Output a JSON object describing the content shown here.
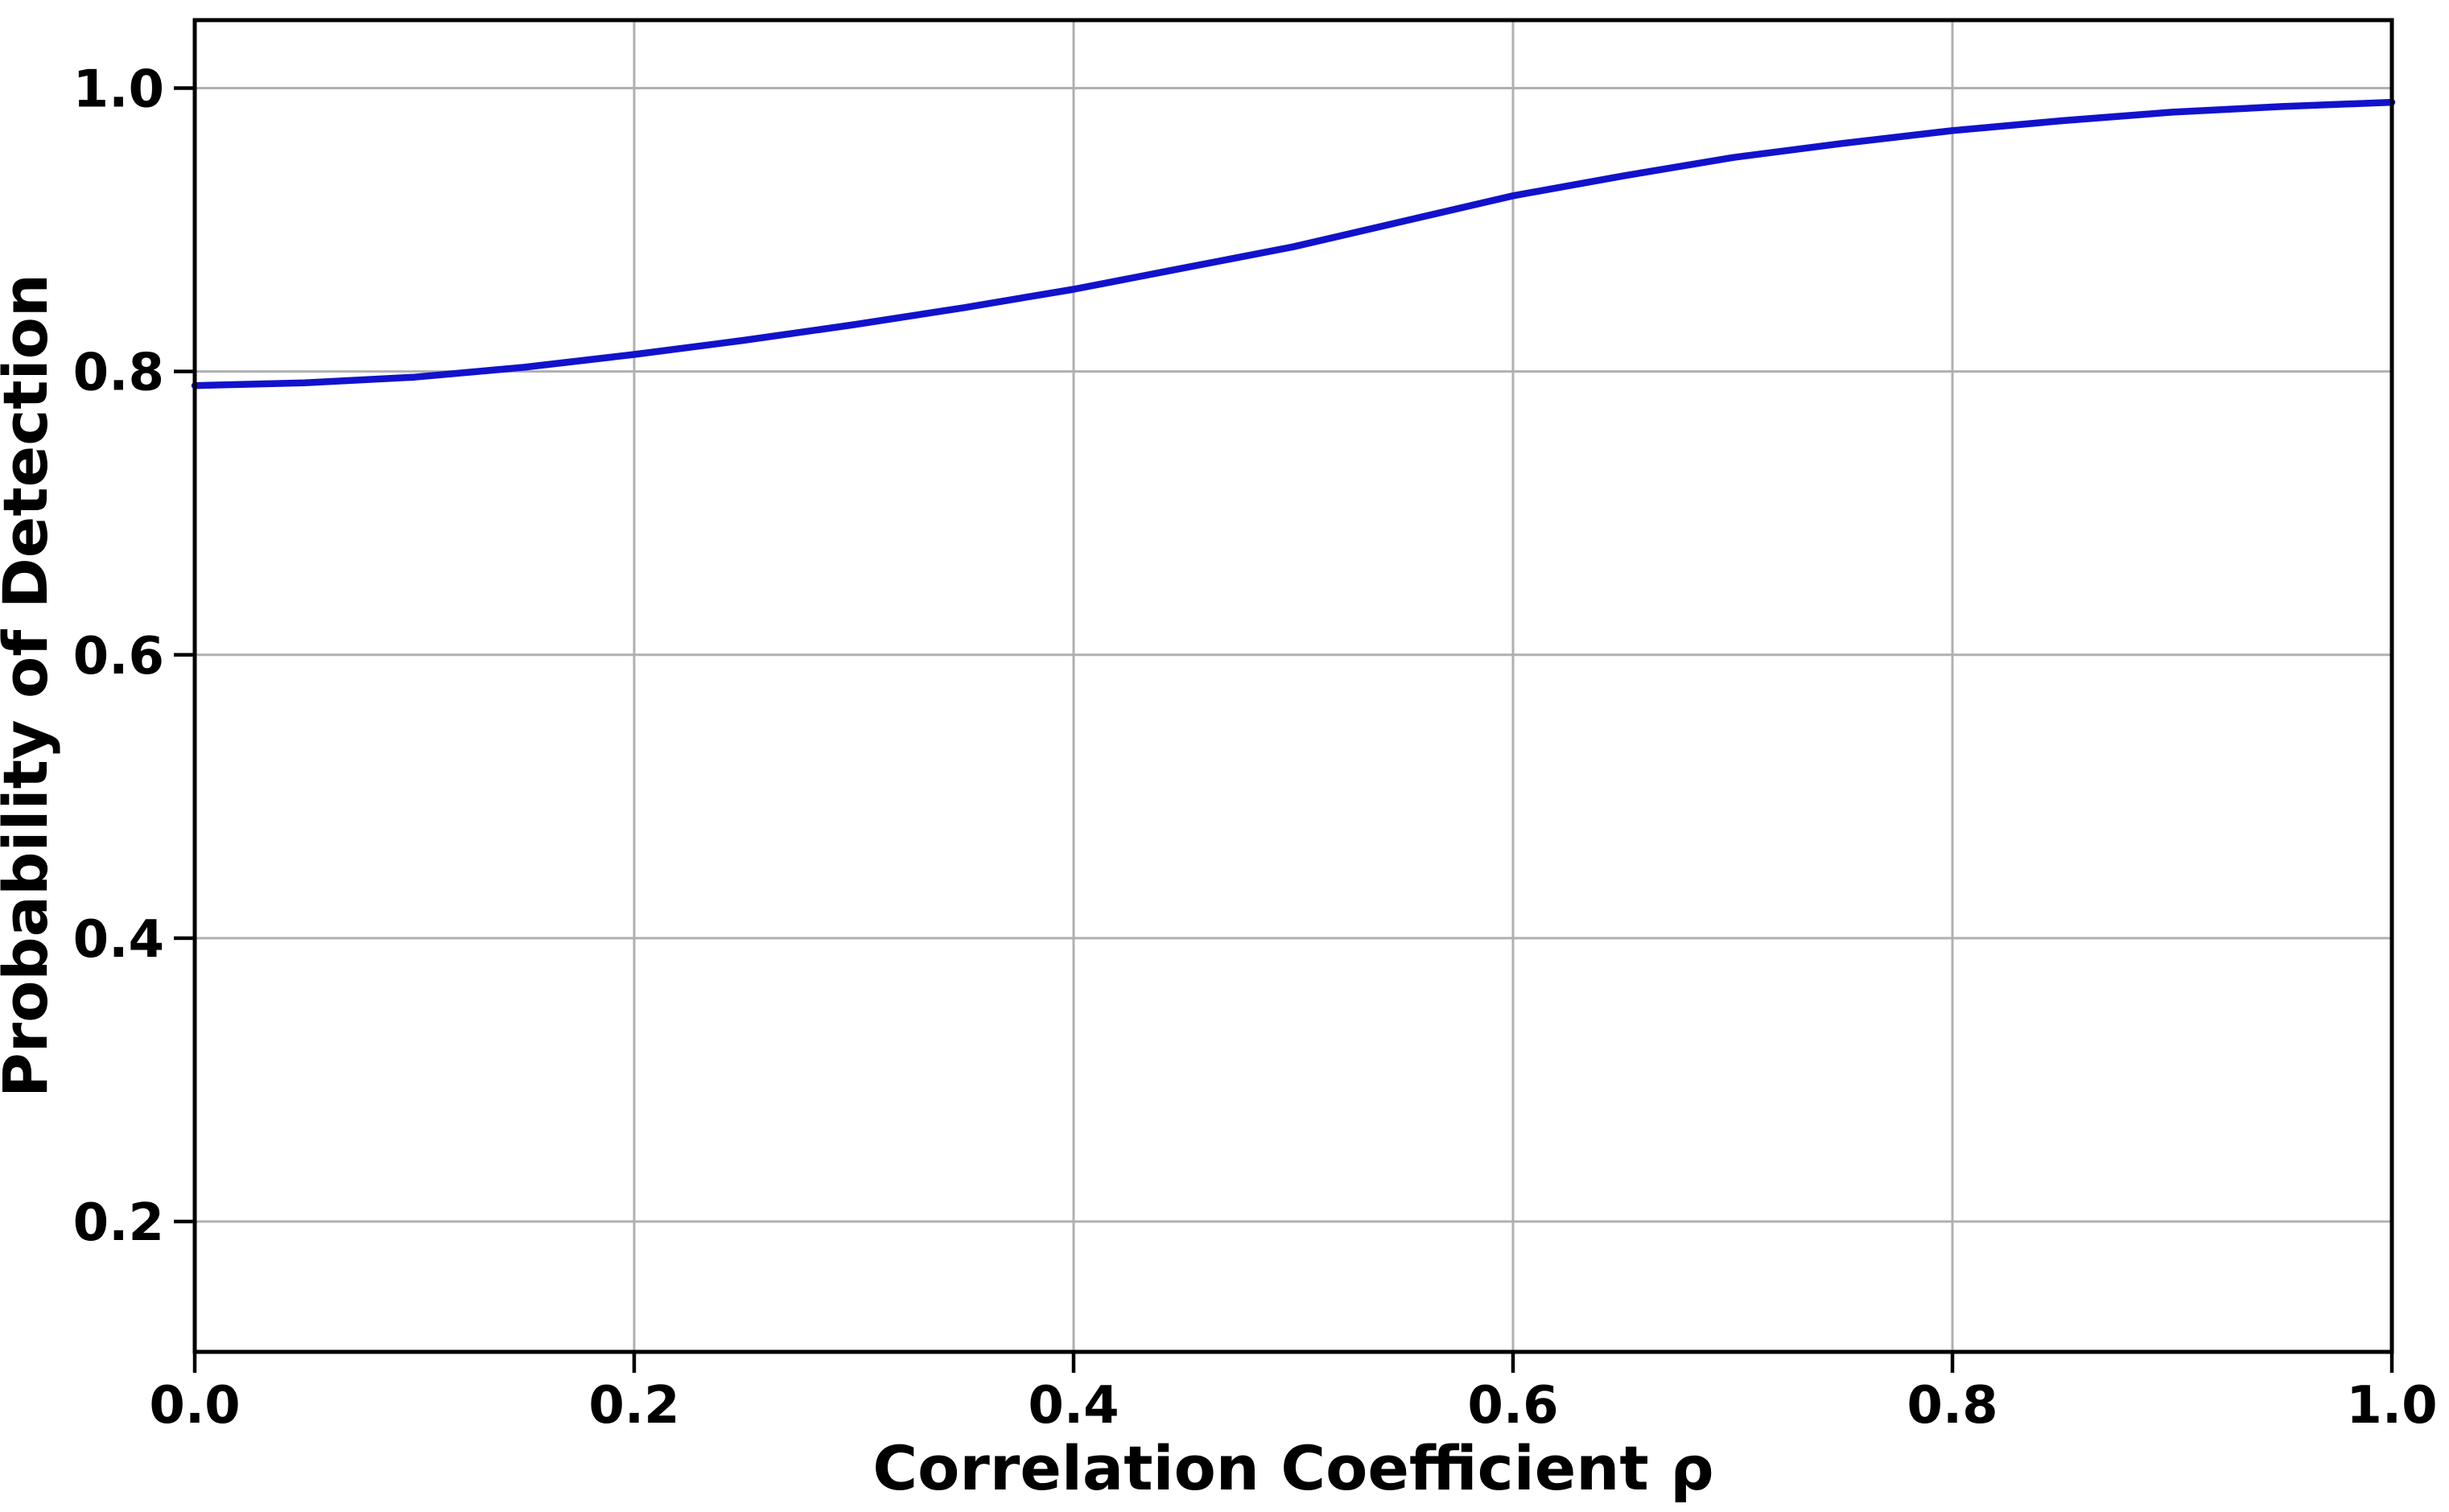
{
  "chart_data": {
    "type": "line",
    "title": "",
    "xlabel": "Correlation Coefficient ρ",
    "ylabel": "Probability of Detection",
    "x_tick_labels": [
      "0.0",
      "0.2",
      "0.4",
      "0.6",
      "0.8",
      "1.0"
    ],
    "y_tick_labels": [
      "0.2",
      "0.4",
      "0.6",
      "0.8",
      "1.0"
    ],
    "x_tick_values": [
      0.0,
      0.2,
      0.4,
      0.6,
      0.8,
      1.0
    ],
    "y_tick_values": [
      0.2,
      0.4,
      0.6,
      0.8,
      1.0
    ],
    "xlim": [
      0.0,
      1.0
    ],
    "ylim": [
      0.108,
      1.048
    ],
    "grid": "on",
    "legend": "none",
    "colors": {
      "line": "#1212CC",
      "grid": "#B0B0B0",
      "spine": "#000000",
      "tick": "#000000",
      "background": "#FFFFFF"
    },
    "series": [
      {
        "name": "Probability of Detection",
        "x": [
          0.0,
          0.05,
          0.1,
          0.15,
          0.2,
          0.25,
          0.3,
          0.35,
          0.4,
          0.45,
          0.5,
          0.55,
          0.6,
          0.65,
          0.7,
          0.75,
          0.8,
          0.85,
          0.9,
          0.95,
          1.0
        ],
        "y": [
          0.79,
          0.792,
          0.796,
          0.803,
          0.812,
          0.822,
          0.833,
          0.845,
          0.858,
          0.873,
          0.888,
          0.906,
          0.924,
          0.938,
          0.951,
          0.961,
          0.97,
          0.977,
          0.983,
          0.987,
          0.99
        ]
      }
    ]
  }
}
